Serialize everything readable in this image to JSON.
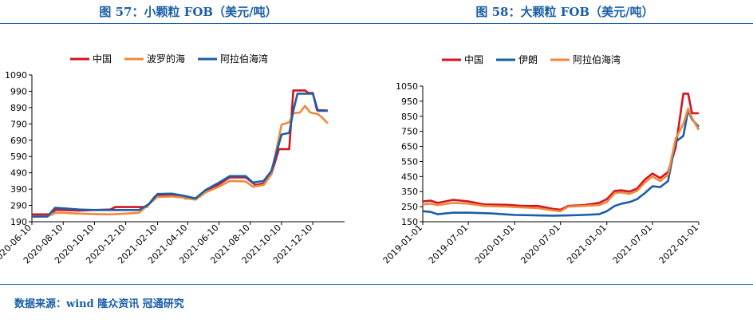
{
  "titles": {
    "left": "图 57：小颗粒 FOB（美元/吨）",
    "right": "图 58：大颗粒 FOB（美元/吨）"
  },
  "source": "数据来源：wind 隆众资讯 冠通研究",
  "colors": {
    "china": "#d2141e",
    "blue": "#1a5ea8",
    "orange": "#f0883c",
    "title": "#1a5ea8"
  },
  "chart_data": [
    {
      "type": "line",
      "title": "小颗粒 FOB（美元/吨）",
      "ylim": [
        190,
        1090
      ],
      "yticks": [
        190,
        290,
        390,
        490,
        590,
        690,
        790,
        890,
        990,
        1090
      ],
      "xlim": [
        "2020-06-10",
        "2022-02-10"
      ],
      "xticks": [
        "2020-06-10",
        "2020-08-10",
        "2020-10-10",
        "2020-12-10",
        "2021-02-10",
        "2021-04-10",
        "2021-06-10",
        "2021-08-10",
        "2021-10-10",
        "2021-12-10"
      ],
      "legend_position": "top",
      "series": [
        {
          "name": "中国",
          "color": "#d2141e",
          "points": [
            [
              "2020-06-10",
              235
            ],
            [
              "2020-07-20",
              235
            ],
            [
              "2020-07-25",
              262
            ],
            [
              "2020-08-10",
              262
            ],
            [
              "2020-09-10",
              258
            ],
            [
              "2020-10-10",
              262
            ],
            [
              "2020-11-10",
              265
            ],
            [
              "2020-11-20",
              280
            ],
            [
              "2021-01-20",
              280
            ],
            [
              "2021-02-05",
              345
            ],
            [
              "2021-02-10",
              352
            ],
            [
              "2021-04-01",
              350
            ],
            [
              "2021-04-05",
              333
            ],
            [
              "2021-04-25",
              333
            ],
            [
              "2021-05-15",
              380
            ],
            [
              "2021-06-10",
              420
            ],
            [
              "2021-07-01",
              462
            ],
            [
              "2021-08-01",
              462
            ],
            [
              "2021-08-20",
              415
            ],
            [
              "2021-09-05",
              425
            ],
            [
              "2021-09-20",
              480
            ],
            [
              "2021-10-05",
              635
            ],
            [
              "2021-10-25",
              635
            ],
            [
              "2021-11-02",
              995
            ],
            [
              "2021-11-25",
              995
            ],
            [
              "2021-12-01",
              980
            ],
            [
              "2021-12-10",
              980
            ],
            [
              "2021-12-18",
              875
            ],
            [
              "2022-01-08",
              872
            ]
          ]
        },
        {
          "name": "波罗的海",
          "color": "#f0883c",
          "points": [
            [
              "2020-06-10",
              220
            ],
            [
              "2020-07-10",
              222
            ],
            [
              "2020-07-25",
              245
            ],
            [
              "2020-08-10",
              245
            ],
            [
              "2020-09-10",
              240
            ],
            [
              "2020-10-10",
              237
            ],
            [
              "2020-11-10",
              235
            ],
            [
              "2020-12-10",
              240
            ],
            [
              "2021-01-05",
              245
            ],
            [
              "2021-01-25",
              300
            ],
            [
              "2021-02-10",
              342
            ],
            [
              "2021-03-10",
              345
            ],
            [
              "2021-04-01",
              338
            ],
            [
              "2021-04-25",
              325
            ],
            [
              "2021-05-15",
              370
            ],
            [
              "2021-06-10",
              405
            ],
            [
              "2021-07-01",
              440
            ],
            [
              "2021-08-01",
              437
            ],
            [
              "2021-08-15",
              405
            ],
            [
              "2021-09-05",
              415
            ],
            [
              "2021-09-20",
              480
            ],
            [
              "2021-10-10",
              785
            ],
            [
              "2021-10-25",
              800
            ],
            [
              "2021-11-02",
              855
            ],
            [
              "2021-11-15",
              860
            ],
            [
              "2021-11-25",
              900
            ],
            [
              "2021-12-05",
              860
            ],
            [
              "2021-12-20",
              850
            ],
            [
              "2021-12-28",
              830
            ],
            [
              "2022-01-08",
              793
            ]
          ]
        },
        {
          "name": "阿拉伯海湾",
          "color": "#1a5ea8",
          "points": [
            [
              "2020-06-10",
              222
            ],
            [
              "2020-07-10",
              222
            ],
            [
              "2020-07-25",
              275
            ],
            [
              "2020-08-10",
              272
            ],
            [
              "2020-09-10",
              265
            ],
            [
              "2020-10-10",
              262
            ],
            [
              "2020-11-10",
              262
            ],
            [
              "2020-12-10",
              262
            ],
            [
              "2021-01-05",
              262
            ],
            [
              "2021-01-25",
              300
            ],
            [
              "2021-02-10",
              360
            ],
            [
              "2021-03-10",
              362
            ],
            [
              "2021-04-01",
              350
            ],
            [
              "2021-04-25",
              333
            ],
            [
              "2021-05-15",
              385
            ],
            [
              "2021-06-10",
              430
            ],
            [
              "2021-07-01",
              470
            ],
            [
              "2021-08-01",
              470
            ],
            [
              "2021-08-15",
              430
            ],
            [
              "2021-09-05",
              440
            ],
            [
              "2021-09-20",
              500
            ],
            [
              "2021-10-10",
              725
            ],
            [
              "2021-10-25",
              735
            ],
            [
              "2021-11-02",
              870
            ],
            [
              "2021-11-10",
              975
            ],
            [
              "2021-12-10",
              975
            ],
            [
              "2021-12-20",
              870
            ],
            [
              "2022-01-08",
              870
            ]
          ]
        }
      ]
    },
    {
      "type": "line",
      "title": "大颗粒 FOB（美元/吨）",
      "ylim": [
        150,
        1050
      ],
      "yticks": [
        150,
        250,
        350,
        450,
        550,
        650,
        750,
        850,
        950,
        1050
      ],
      "xlim": [
        "2019-01-01",
        "2022-01-01"
      ],
      "xticks": [
        "2019-01-01",
        "2019-07-01",
        "2020-01-01",
        "2020-07-01",
        "2021-01-01",
        "2021-07-01",
        "2022-01-01"
      ],
      "legend_position": "top",
      "series": [
        {
          "name": "中国",
          "color": "#d2141e",
          "points": [
            [
              "2019-01-01",
              285
            ],
            [
              "2019-02-01",
              290
            ],
            [
              "2019-03-01",
              275
            ],
            [
              "2019-05-01",
              295
            ],
            [
              "2019-07-01",
              285
            ],
            [
              "2019-09-01",
              265
            ],
            [
              "2019-12-01",
              262
            ],
            [
              "2020-02-01",
              255
            ],
            [
              "2020-04-01",
              255
            ],
            [
              "2020-06-01",
              235
            ],
            [
              "2020-07-01",
              230
            ],
            [
              "2020-08-01",
              255
            ],
            [
              "2020-10-01",
              260
            ],
            [
              "2020-12-01",
              275
            ],
            [
              "2021-01-01",
              300
            ],
            [
              "2021-02-01",
              355
            ],
            [
              "2021-03-01",
              358
            ],
            [
              "2021-04-01",
              350
            ],
            [
              "2021-05-01",
              370
            ],
            [
              "2021-06-01",
              430
            ],
            [
              "2021-07-01",
              470
            ],
            [
              "2021-08-01",
              440
            ],
            [
              "2021-09-01",
              480
            ],
            [
              "2021-10-01",
              640
            ],
            [
              "2021-11-01",
              1000
            ],
            [
              "2021-11-20",
              1000
            ],
            [
              "2021-12-05",
              870
            ],
            [
              "2022-01-01",
              870
            ]
          ]
        },
        {
          "name": "伊朗",
          "color": "#1a5ea8",
          "points": [
            [
              "2019-01-01",
              220
            ],
            [
              "2019-02-01",
              215
            ],
            [
              "2019-03-01",
              200
            ],
            [
              "2019-05-01",
              210
            ],
            [
              "2019-07-01",
              210
            ],
            [
              "2019-10-01",
              205
            ],
            [
              "2020-01-01",
              195
            ],
            [
              "2020-04-01",
              192
            ],
            [
              "2020-06-01",
              190
            ],
            [
              "2020-08-01",
              192
            ],
            [
              "2020-10-01",
              195
            ],
            [
              "2020-12-01",
              200
            ],
            [
              "2021-01-01",
              220
            ],
            [
              "2021-02-01",
              255
            ],
            [
              "2021-03-01",
              270
            ],
            [
              "2021-04-01",
              280
            ],
            [
              "2021-05-01",
              300
            ],
            [
              "2021-06-01",
              340
            ],
            [
              "2021-07-01",
              385
            ],
            [
              "2021-08-01",
              380
            ],
            [
              "2021-09-01",
              420
            ],
            [
              "2021-10-01",
              680
            ],
            [
              "2021-11-01",
              720
            ],
            [
              "2021-11-20",
              890
            ],
            [
              "2021-12-05",
              830
            ],
            [
              "2022-01-01",
              780
            ]
          ]
        },
        {
          "name": "阿拉伯海湾",
          "color": "#f0883c",
          "points": [
            [
              "2019-01-01",
              265
            ],
            [
              "2019-02-01",
              270
            ],
            [
              "2019-03-01",
              260
            ],
            [
              "2019-05-01",
              275
            ],
            [
              "2019-07-01",
              270
            ],
            [
              "2019-09-01",
              255
            ],
            [
              "2019-12-01",
              250
            ],
            [
              "2020-02-01",
              245
            ],
            [
              "2020-04-01",
              240
            ],
            [
              "2020-06-01",
              225
            ],
            [
              "2020-07-01",
              220
            ],
            [
              "2020-08-01",
              250
            ],
            [
              "2020-10-01",
              255
            ],
            [
              "2020-12-01",
              260
            ],
            [
              "2021-01-01",
              280
            ],
            [
              "2021-02-01",
              340
            ],
            [
              "2021-03-01",
              345
            ],
            [
              "2021-04-01",
              335
            ],
            [
              "2021-05-01",
              355
            ],
            [
              "2021-06-01",
              410
            ],
            [
              "2021-07-01",
              450
            ],
            [
              "2021-08-01",
              420
            ],
            [
              "2021-09-01",
              460
            ],
            [
              "2021-10-01",
              700
            ],
            [
              "2021-11-01",
              800
            ],
            [
              "2021-11-20",
              900
            ],
            [
              "2021-12-05",
              840
            ],
            [
              "2022-01-01",
              760
            ]
          ]
        }
      ]
    }
  ]
}
